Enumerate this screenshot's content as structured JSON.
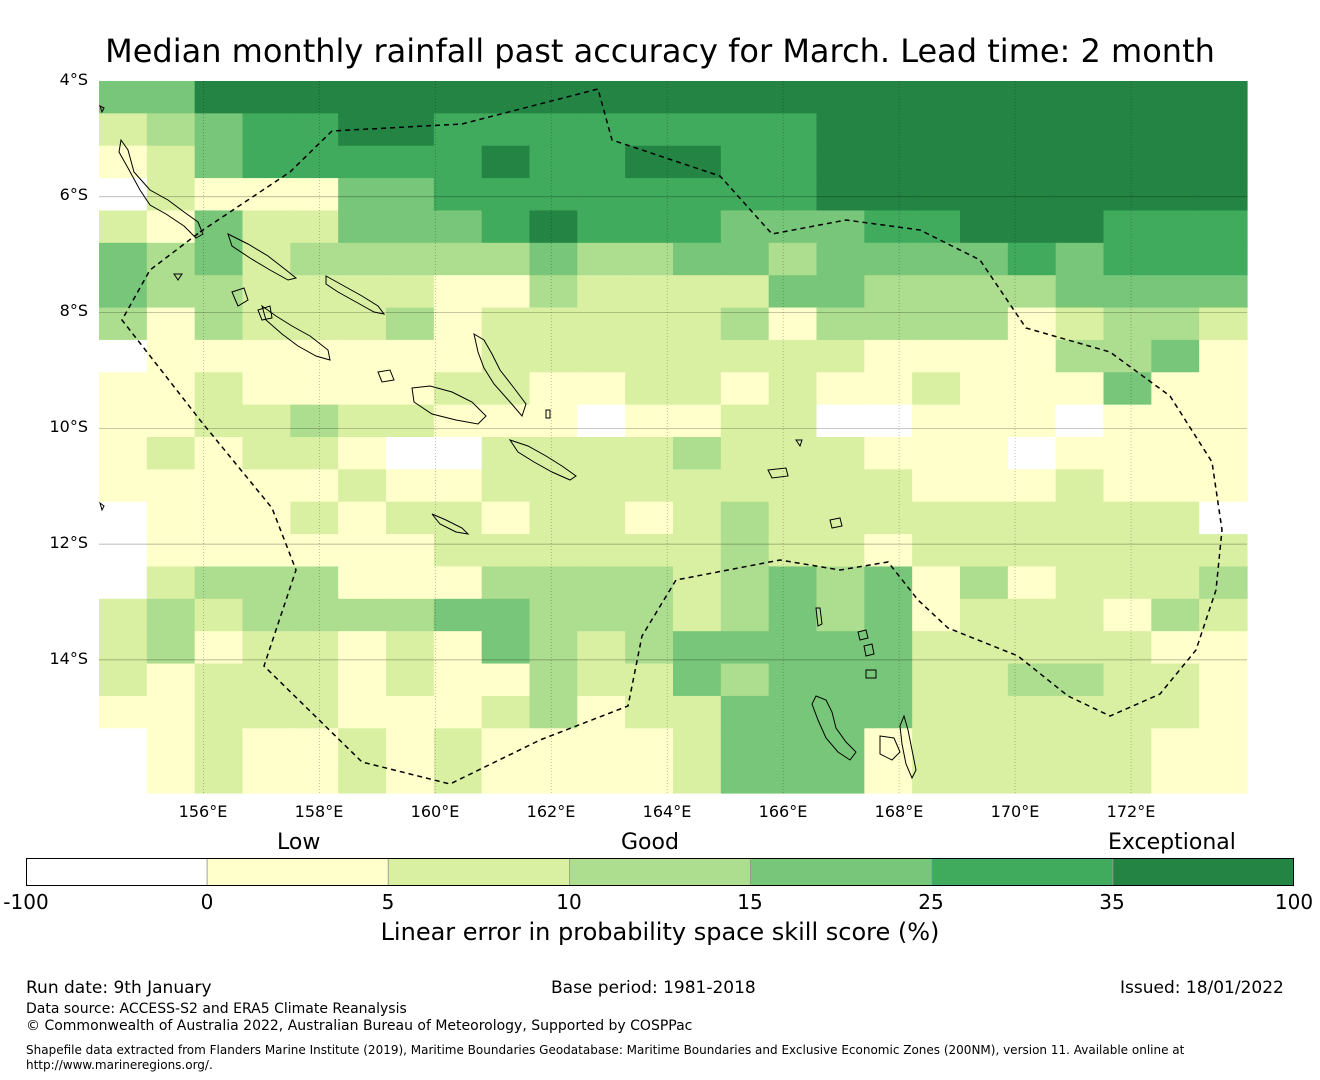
{
  "title": "Median monthly rainfall past accuracy for March. Lead time: 2 month",
  "map": {
    "lat_labels": [
      "4°S",
      "6°S",
      "8°S",
      "10°S",
      "12°S",
      "14°S"
    ],
    "lon_labels": [
      "156°E",
      "158°E",
      "160°E",
      "162°E",
      "164°E",
      "166°E",
      "168°E",
      "170°E",
      "172°E"
    ],
    "extent": {
      "lon_min": 154.2,
      "lon_max": 174.0,
      "lat_north": -4.0,
      "lat_south": -16.3
    },
    "cell_deg": 0.833,
    "colors": {
      "white": "#ffffff",
      "c0_5": "#ffffcc",
      "c5_10": "#d9f0a3",
      "c10_15": "#addd8e",
      "c15_25": "#78c679",
      "c25_35": "#41ab5d",
      "c35_100": "#238443"
    },
    "skill_grid": [
      "446666666666666666666666",
      "234556655555555666666666",
      "124555556556655666666666",
      "021114455555555666666666",
      "214224445655544455666555",
      "434233333433443444454555",
      "433222211322224433334444",
      "313222312222231333312332",
      "011111112222222211113341",
      "112111122112212112111411",
      "112232211101122001110111",
      "121221002222322211101111",
      "111112112222222221112111",
      "011121221221232222222220",
      "011111122222232212222222",
      "023331113333234341312223",
      "232333344333234341222132",
      "231221214323444442222211",
      "212221211322434442233221",
      "112221112312244442222221",
      "012112121111244412222211",
      "012112121111244412222211"
    ]
  },
  "colorbar": {
    "category_labels": [
      "Low",
      "Good",
      "Exceptional"
    ],
    "ticks": [
      "-100",
      "0",
      "5",
      "10",
      "15",
      "25",
      "35",
      "100"
    ],
    "colors": [
      "#ffffff",
      "#ffffcc",
      "#d9f0a3",
      "#addd8e",
      "#78c679",
      "#41ab5d",
      "#238443"
    ],
    "title": "Linear error in probability space skill score (%)"
  },
  "footer": {
    "run_date": "Run date: 9th January",
    "base_period": "Base period: 1981-2018",
    "issued": "Issued: 18/01/2022",
    "data_source": "Data source: ACCESS-S2 and ERA5 Climate Reanalysis",
    "copyright": "© Commonwealth of Australia 2022, Australian Bureau of Meteorology, Supported by COSPPac",
    "shapefile_line1": "Shapefile data extracted from Flanders Marine Institute (2019), Maritime Boundaries Geodatabase: Maritime Boundaries and Exclusive Economic Zones (200NM), version 11. Available online at",
    "shapefile_line2": "http://www.marineregions.org/."
  }
}
